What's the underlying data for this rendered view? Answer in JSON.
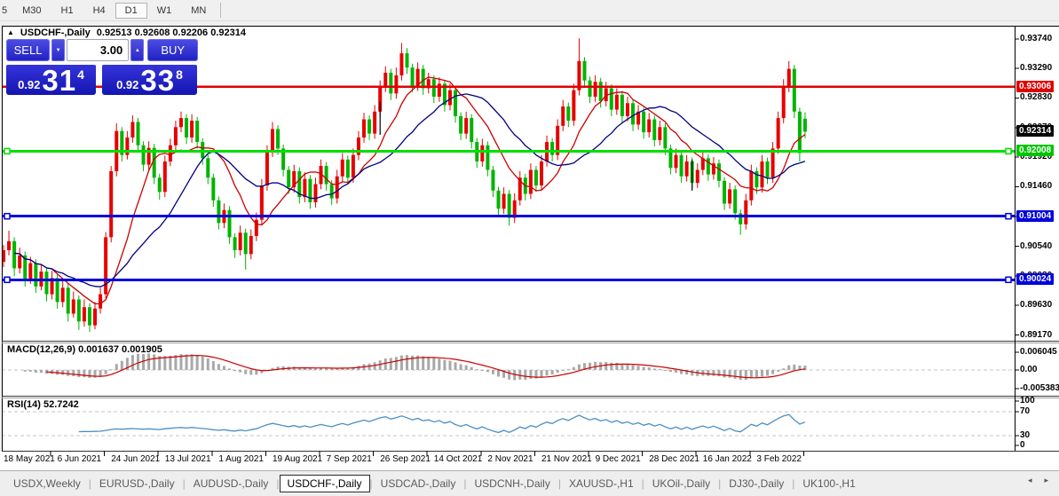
{
  "toolbar": {
    "periods": [
      {
        "label": "5",
        "active": false,
        "partial": true
      },
      {
        "label": "M30",
        "active": false
      },
      {
        "label": "H1",
        "active": false
      },
      {
        "label": "H4",
        "active": false
      },
      {
        "label": "D1",
        "active": true
      },
      {
        "label": "W1",
        "active": false
      },
      {
        "label": "MN",
        "active": false
      }
    ]
  },
  "window": {
    "collapse_icon": "▲",
    "title_symbol": "USDCHF-,Daily",
    "title_ohlc": "0.92513 0.92608 0.92206 0.92314"
  },
  "trade_panel": {
    "sell_label": "SELL",
    "buy_label": "BUY",
    "volume": "3.00",
    "vol_down_icon": "▼",
    "vol_up_icon": "▲",
    "sell_price": {
      "small": "0.92",
      "big": "31",
      "sup": "4"
    },
    "buy_price": {
      "small": "0.92",
      "big": "33",
      "sup": "8"
    }
  },
  "price_axis": {
    "ticks": [
      "0.93740",
      "0.93290",
      "0.92830",
      "0.92370",
      "0.91920",
      "0.91460",
      "0.91000",
      "0.90540",
      "0.90080",
      "0.89630",
      "0.89170"
    ],
    "badges": [
      {
        "value": "0.93006",
        "price": 0.93006,
        "color": "#e00000"
      },
      {
        "value": "0.92314",
        "price": 0.92314,
        "color": "#000000"
      },
      {
        "value": "0.92008",
        "price": 0.92008,
        "color": "#00c400"
      },
      {
        "value": "0.91004",
        "price": 0.91004,
        "color": "#0000dc"
      },
      {
        "value": "0.90024",
        "price": 0.90024,
        "color": "#0000dc"
      }
    ]
  },
  "macd_panel": {
    "label": "MACD(12,26,9) 0.001637 0.001905",
    "params": [
      12,
      26,
      9
    ],
    "values": [
      0.001637,
      0.001905
    ],
    "ticks": [
      "0.006045",
      "0.00",
      "-0.005383"
    ],
    "bar_color": "#a8a8a8",
    "signal_color": "#cc0000"
  },
  "rsi_panel": {
    "label": "RSI(14) 52.7242",
    "period": 14,
    "value": 52.7242,
    "ticks": [
      "100",
      "70",
      "30",
      "0"
    ],
    "levels": [
      70,
      30
    ],
    "line_color": "#4a8fc4"
  },
  "date_axis": {
    "labels": [
      "18 May 2021",
      "6 Jun 2021",
      "24 Jun 2021",
      "13 Jul 2021",
      "1 Aug 2021",
      "19 Aug 2021",
      "7 Sep 2021",
      "26 Sep 2021",
      "14 Oct 2021",
      "2 Nov 2021",
      "21 Nov 2021",
      "9 Dec 2021",
      "28 Dec 2021",
      "16 Jan 2022",
      "3 Feb 2022"
    ]
  },
  "tabs": {
    "items": [
      {
        "label": "USDX,Weekly",
        "active": false
      },
      {
        "label": "EURUSD-,Daily",
        "active": false
      },
      {
        "label": "AUDUSD-,Daily",
        "active": false
      },
      {
        "label": "USDCHF-,Daily",
        "active": true
      },
      {
        "label": "USDCAD-,Daily",
        "active": false
      },
      {
        "label": "USDCNH-,Daily",
        "active": false
      },
      {
        "label": "XAUUSD-,H1",
        "active": false
      },
      {
        "label": "UKOil-,Daily",
        "active": false
      },
      {
        "label": "DJ30-,Daily",
        "active": false
      },
      {
        "label": "UK100-,H1",
        "active": false
      }
    ],
    "scroll_left_icon": "◂",
    "scroll_right_icon": "▸"
  },
  "chart_data": {
    "type": "candlestick",
    "symbol": "USDCHF",
    "timeframe": "Daily",
    "ylim": [
      0.8917,
      0.9374
    ],
    "colors": {
      "bull": "#e60000",
      "bear": "#00b400",
      "ma_fast": "#cc0000",
      "ma_slow": "#000080"
    },
    "ma": [
      {
        "period": 10,
        "color": "#cc0000"
      },
      {
        "period": 20,
        "color": "#000080"
      }
    ],
    "hlines": [
      {
        "price": 0.93006,
        "color": "#e00000",
        "width": 2.5,
        "handles": false
      },
      {
        "price": 0.92008,
        "color": "#00e000",
        "width": 3,
        "handles": true
      },
      {
        "price": 0.91004,
        "color": "#0000e0",
        "width": 3,
        "handles": true
      },
      {
        "price": 0.90024,
        "color": "#0000e0",
        "width": 3,
        "handles": true
      }
    ],
    "annotations": [
      {
        "type": "vertical-segment",
        "x_index": 70,
        "from": 0.9277,
        "to": 0.9226,
        "color": "#000000"
      },
      {
        "type": "vertical-segment",
        "x_index": 128,
        "from": 0.9188,
        "to": 0.914,
        "color": "#000000"
      }
    ],
    "ohlc": [
      [
        0.903,
        0.9056,
        0.9022,
        0.9048
      ],
      [
        0.9048,
        0.9078,
        0.904,
        0.9062
      ],
      [
        0.9062,
        0.9068,
        0.9008,
        0.902
      ],
      [
        0.902,
        0.9052,
        0.9012,
        0.904
      ],
      [
        0.904,
        0.9046,
        0.8992,
        0.9002
      ],
      [
        0.9002,
        0.9038,
        0.8996,
        0.9028
      ],
      [
        0.9028,
        0.9034,
        0.8982,
        0.8992
      ],
      [
        0.8992,
        0.9026,
        0.8986,
        0.9015
      ],
      [
        0.9015,
        0.902,
        0.8969,
        0.898
      ],
      [
        0.898,
        0.9016,
        0.8972,
        0.9005
      ],
      [
        0.9005,
        0.901,
        0.8958,
        0.8968
      ],
      [
        0.8968,
        0.9001,
        0.896,
        0.899
      ],
      [
        0.899,
        0.8996,
        0.8938,
        0.895
      ],
      [
        0.895,
        0.8984,
        0.8944,
        0.8972
      ],
      [
        0.8972,
        0.8978,
        0.8925,
        0.8938
      ],
      [
        0.8938,
        0.8972,
        0.893,
        0.896
      ],
      [
        0.896,
        0.8966,
        0.8922,
        0.8932
      ],
      [
        0.8932,
        0.8968,
        0.8926,
        0.8958
      ],
      [
        0.8958,
        0.899,
        0.895,
        0.898
      ],
      [
        0.898,
        0.9076,
        0.8974,
        0.9068
      ],
      [
        0.9068,
        0.9178,
        0.906,
        0.917
      ],
      [
        0.917,
        0.9244,
        0.9162,
        0.9232
      ],
      [
        0.9232,
        0.9238,
        0.9185,
        0.9195
      ],
      [
        0.9195,
        0.9232,
        0.9188,
        0.9222
      ],
      [
        0.9222,
        0.9256,
        0.9214,
        0.9246
      ],
      [
        0.9246,
        0.9252,
        0.92,
        0.921
      ],
      [
        0.921,
        0.9216,
        0.917,
        0.918
      ],
      [
        0.918,
        0.9216,
        0.9172,
        0.9206
      ],
      [
        0.9206,
        0.9212,
        0.915,
        0.916
      ],
      [
        0.916,
        0.9166,
        0.9126,
        0.9138
      ],
      [
        0.9138,
        0.9194,
        0.913,
        0.9185
      ],
      [
        0.9185,
        0.922,
        0.9178,
        0.921
      ],
      [
        0.921,
        0.9248,
        0.9202,
        0.9238
      ],
      [
        0.9238,
        0.9262,
        0.923,
        0.9252
      ],
      [
        0.9252,
        0.9258,
        0.9212,
        0.9222
      ],
      [
        0.9222,
        0.9258,
        0.9214,
        0.9248
      ],
      [
        0.9248,
        0.9254,
        0.9205,
        0.9215
      ],
      [
        0.9215,
        0.9221,
        0.918,
        0.919
      ],
      [
        0.919,
        0.9196,
        0.915,
        0.916
      ],
      [
        0.916,
        0.9166,
        0.9115,
        0.9125
      ],
      [
        0.9125,
        0.9131,
        0.908,
        0.909
      ],
      [
        0.909,
        0.912,
        0.9082,
        0.911
      ],
      [
        0.911,
        0.9116,
        0.9058,
        0.9068
      ],
      [
        0.9068,
        0.9074,
        0.9036,
        0.9048
      ],
      [
        0.9048,
        0.9086,
        0.904,
        0.9075
      ],
      [
        0.9075,
        0.9081,
        0.9018,
        0.9042
      ],
      [
        0.9042,
        0.908,
        0.9034,
        0.907
      ],
      [
        0.907,
        0.9106,
        0.9062,
        0.9095
      ],
      [
        0.9095,
        0.9158,
        0.9088,
        0.9148
      ],
      [
        0.9148,
        0.921,
        0.914,
        0.92
      ],
      [
        0.92,
        0.9246,
        0.9192,
        0.9235
      ],
      [
        0.9235,
        0.9241,
        0.9195,
        0.9205
      ],
      [
        0.9205,
        0.9211,
        0.9162,
        0.9172
      ],
      [
        0.9172,
        0.9178,
        0.9135,
        0.9145
      ],
      [
        0.9145,
        0.918,
        0.9137,
        0.917
      ],
      [
        0.917,
        0.9176,
        0.912,
        0.913
      ],
      [
        0.913,
        0.9168,
        0.9122,
        0.9158
      ],
      [
        0.9158,
        0.9164,
        0.9112,
        0.9122
      ],
      [
        0.9122,
        0.916,
        0.9114,
        0.915
      ],
      [
        0.915,
        0.9188,
        0.9142,
        0.9178
      ],
      [
        0.9178,
        0.9184,
        0.914,
        0.915
      ],
      [
        0.915,
        0.9156,
        0.9118,
        0.9128
      ],
      [
        0.9128,
        0.9172,
        0.912,
        0.9162
      ],
      [
        0.9162,
        0.9198,
        0.9154,
        0.9188
      ],
      [
        0.9188,
        0.9194,
        0.915,
        0.916
      ],
      [
        0.916,
        0.9205,
        0.9152,
        0.9195
      ],
      [
        0.9195,
        0.9232,
        0.9187,
        0.9222
      ],
      [
        0.9222,
        0.926,
        0.9214,
        0.925
      ],
      [
        0.925,
        0.9256,
        0.9218,
        0.9228
      ],
      [
        0.9228,
        0.9272,
        0.922,
        0.9262
      ],
      [
        0.9262,
        0.931,
        0.9254,
        0.93
      ],
      [
        0.93,
        0.9332,
        0.9292,
        0.9322
      ],
      [
        0.9322,
        0.9328,
        0.928,
        0.929
      ],
      [
        0.929,
        0.933,
        0.9282,
        0.9318
      ],
      [
        0.9318,
        0.9368,
        0.931,
        0.9352
      ],
      [
        0.9352,
        0.936,
        0.932,
        0.933
      ],
      [
        0.933,
        0.9336,
        0.9292,
        0.9302
      ],
      [
        0.9302,
        0.9338,
        0.9294,
        0.9328
      ],
      [
        0.9328,
        0.9334,
        0.9288,
        0.9298
      ],
      [
        0.9298,
        0.9322,
        0.929,
        0.9312
      ],
      [
        0.9312,
        0.9318,
        0.9275,
        0.9285
      ],
      [
        0.9285,
        0.9315,
        0.9277,
        0.9305
      ],
      [
        0.9305,
        0.9311,
        0.9262,
        0.9272
      ],
      [
        0.9272,
        0.9305,
        0.9264,
        0.9295
      ],
      [
        0.9295,
        0.9301,
        0.9245,
        0.9255
      ],
      [
        0.9255,
        0.9261,
        0.9218,
        0.9228
      ],
      [
        0.9228,
        0.9262,
        0.922,
        0.9252
      ],
      [
        0.9252,
        0.9258,
        0.9205,
        0.9215
      ],
      [
        0.9215,
        0.9221,
        0.9175,
        0.9185
      ],
      [
        0.9185,
        0.922,
        0.9177,
        0.921
      ],
      [
        0.921,
        0.9216,
        0.9162,
        0.9172
      ],
      [
        0.9172,
        0.9178,
        0.913,
        0.914
      ],
      [
        0.914,
        0.9146,
        0.91,
        0.9112
      ],
      [
        0.9112,
        0.9145,
        0.9104,
        0.9135
      ],
      [
        0.9135,
        0.9141,
        0.9086,
        0.9098
      ],
      [
        0.9098,
        0.9136,
        0.909,
        0.9125
      ],
      [
        0.9125,
        0.917,
        0.9117,
        0.916
      ],
      [
        0.916,
        0.9166,
        0.9125,
        0.9135
      ],
      [
        0.9135,
        0.9182,
        0.9127,
        0.9172
      ],
      [
        0.9172,
        0.9178,
        0.9138,
        0.9148
      ],
      [
        0.9148,
        0.9195,
        0.914,
        0.9185
      ],
      [
        0.9185,
        0.9225,
        0.9177,
        0.9215
      ],
      [
        0.9215,
        0.9221,
        0.9185,
        0.9195
      ],
      [
        0.9195,
        0.925,
        0.9187,
        0.924
      ],
      [
        0.924,
        0.928,
        0.9232,
        0.927
      ],
      [
        0.927,
        0.9276,
        0.9238,
        0.9248
      ],
      [
        0.9248,
        0.9305,
        0.924,
        0.9295
      ],
      [
        0.9295,
        0.9375,
        0.9287,
        0.934
      ],
      [
        0.934,
        0.9346,
        0.93,
        0.931
      ],
      [
        0.931,
        0.9316,
        0.9275,
        0.9285
      ],
      [
        0.9285,
        0.9318,
        0.9277,
        0.9308
      ],
      [
        0.9308,
        0.9314,
        0.9268,
        0.9278
      ],
      [
        0.9278,
        0.9308,
        0.927,
        0.9298
      ],
      [
        0.9298,
        0.9304,
        0.9255,
        0.9265
      ],
      [
        0.9265,
        0.9298,
        0.9257,
        0.9288
      ],
      [
        0.9288,
        0.9294,
        0.9245,
        0.9255
      ],
      [
        0.9255,
        0.9285,
        0.9247,
        0.9275
      ],
      [
        0.9275,
        0.9281,
        0.9232,
        0.9242
      ],
      [
        0.9242,
        0.9272,
        0.9234,
        0.9262
      ],
      [
        0.9262,
        0.9268,
        0.922,
        0.923
      ],
      [
        0.923,
        0.926,
        0.9222,
        0.925
      ],
      [
        0.925,
        0.9256,
        0.9208,
        0.9218
      ],
      [
        0.9218,
        0.9248,
        0.921,
        0.9238
      ],
      [
        0.9238,
        0.9244,
        0.9195,
        0.9205
      ],
      [
        0.9205,
        0.9211,
        0.9165,
        0.9175
      ],
      [
        0.9175,
        0.9205,
        0.9167,
        0.9195
      ],
      [
        0.9195,
        0.9201,
        0.9152,
        0.9162
      ],
      [
        0.9162,
        0.9195,
        0.9154,
        0.9185
      ],
      [
        0.9185,
        0.9191,
        0.9142,
        0.9152
      ],
      [
        0.9152,
        0.9182,
        0.9144,
        0.9172
      ],
      [
        0.9172,
        0.92,
        0.9164,
        0.919
      ],
      [
        0.919,
        0.9196,
        0.9155,
        0.9165
      ],
      [
        0.9165,
        0.9192,
        0.9157,
        0.9182
      ],
      [
        0.9182,
        0.9188,
        0.9145,
        0.9155
      ],
      [
        0.9155,
        0.9161,
        0.911,
        0.912
      ],
      [
        0.912,
        0.9152,
        0.9112,
        0.9142
      ],
      [
        0.9142,
        0.9148,
        0.9095,
        0.9105
      ],
      [
        0.9105,
        0.9111,
        0.9072,
        0.9088
      ],
      [
        0.9088,
        0.9135,
        0.908,
        0.9125
      ],
      [
        0.9125,
        0.918,
        0.9117,
        0.917
      ],
      [
        0.917,
        0.9176,
        0.9135,
        0.9145
      ],
      [
        0.9145,
        0.9195,
        0.9137,
        0.9185
      ],
      [
        0.9185,
        0.9191,
        0.915,
        0.916
      ],
      [
        0.916,
        0.9215,
        0.9152,
        0.9205
      ],
      [
        0.9205,
        0.9262,
        0.9197,
        0.9252
      ],
      [
        0.9252,
        0.9312,
        0.9244,
        0.93
      ],
      [
        0.93,
        0.934,
        0.9292,
        0.9328
      ],
      [
        0.9328,
        0.9334,
        0.9252,
        0.9262
      ],
      [
        0.9262,
        0.9268,
        0.9185,
        0.9198
      ],
      [
        0.9251,
        0.9261,
        0.9221,
        0.9231
      ]
    ]
  }
}
